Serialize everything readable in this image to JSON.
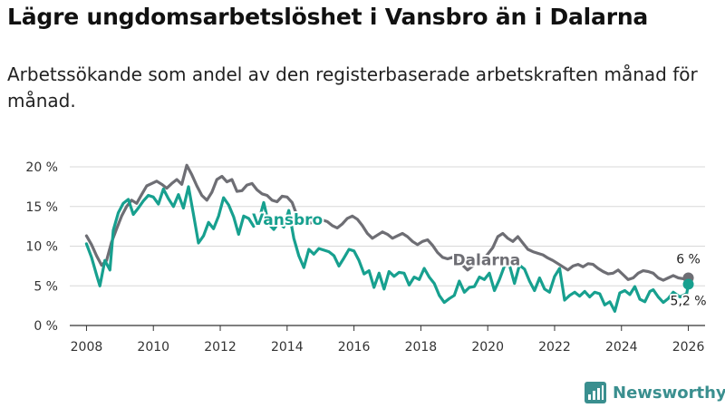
{
  "title": "Lägre ungdomsarbetslöshet i Vansbro än i Dalarna",
  "subtitle": "Arbetssökande som andel av den registerbaserade arbetskraften månad för månad.",
  "brand": {
    "name": "Newsworthy",
    "color": "#3a8f8f"
  },
  "colors": {
    "vansbro": "#17a08f",
    "dalarna": "#6e6e74",
    "grid": "#d8d8d8",
    "axis": "#333333"
  },
  "chart_data": {
    "type": "line",
    "title": "Lägre ungdomsarbetslöshet i Vansbro än i Dalarna",
    "xlabel": "",
    "ylabel": "",
    "xlim": [
      2007.5,
      2026.5
    ],
    "ylim": [
      0,
      20
    ],
    "x_ticks": [
      2008,
      2010,
      2012,
      2014,
      2016,
      2018,
      2020,
      2022,
      2024,
      2026
    ],
    "x_tick_labels": [
      "2008",
      "2010",
      "2012",
      "2014",
      "2016",
      "2018",
      "2020",
      "2022",
      "2024",
      "2026"
    ],
    "y_ticks": [
      0,
      5,
      10,
      15,
      20
    ],
    "y_tick_labels": [
      "0 %",
      "5 %",
      "10 %",
      "15 %",
      "20 %"
    ],
    "grid": true,
    "series": [
      {
        "name": "Dalarna",
        "label": "Dalarna",
        "color": "#6e6e74",
        "end_label": "6 %",
        "points": [
          [
            2008.0,
            11.3
          ],
          [
            2008.15,
            10.2
          ],
          [
            2008.3,
            8.8
          ],
          [
            2008.45,
            7.6
          ],
          [
            2008.6,
            8.2
          ],
          [
            2008.75,
            10.5
          ],
          [
            2008.9,
            12.2
          ],
          [
            2009.05,
            13.8
          ],
          [
            2009.2,
            15.0
          ],
          [
            2009.35,
            15.8
          ],
          [
            2009.5,
            15.4
          ],
          [
            2009.65,
            16.5
          ],
          [
            2009.8,
            17.6
          ],
          [
            2009.95,
            17.9
          ],
          [
            2010.1,
            18.2
          ],
          [
            2010.25,
            17.8
          ],
          [
            2010.4,
            17.3
          ],
          [
            2010.55,
            17.9
          ],
          [
            2010.7,
            18.4
          ],
          [
            2010.85,
            17.8
          ],
          [
            2011.0,
            20.2
          ],
          [
            2011.15,
            19.0
          ],
          [
            2011.3,
            17.6
          ],
          [
            2011.45,
            16.4
          ],
          [
            2011.6,
            15.8
          ],
          [
            2011.75,
            16.8
          ],
          [
            2011.9,
            18.4
          ],
          [
            2012.05,
            18.8
          ],
          [
            2012.2,
            18.1
          ],
          [
            2012.35,
            18.4
          ],
          [
            2012.5,
            16.9
          ],
          [
            2012.65,
            17.0
          ],
          [
            2012.8,
            17.7
          ],
          [
            2012.95,
            17.9
          ],
          [
            2013.1,
            17.1
          ],
          [
            2013.25,
            16.6
          ],
          [
            2013.4,
            16.4
          ],
          [
            2013.55,
            15.8
          ],
          [
            2013.7,
            15.6
          ],
          [
            2013.85,
            16.3
          ],
          [
            2014.0,
            16.2
          ],
          [
            2014.15,
            15.5
          ],
          [
            2014.3,
            13.8
          ],
          [
            2014.45,
            13.0
          ],
          [
            2014.6,
            12.8
          ],
          [
            2014.75,
            13.0
          ],
          [
            2014.9,
            12.9
          ],
          [
            2015.05,
            13.3
          ],
          [
            2015.2,
            13.1
          ],
          [
            2015.35,
            12.6
          ],
          [
            2015.5,
            12.3
          ],
          [
            2015.65,
            12.8
          ],
          [
            2015.8,
            13.5
          ],
          [
            2015.95,
            13.8
          ],
          [
            2016.1,
            13.4
          ],
          [
            2016.25,
            12.6
          ],
          [
            2016.4,
            11.6
          ],
          [
            2016.55,
            11.0
          ],
          [
            2016.7,
            11.4
          ],
          [
            2016.85,
            11.8
          ],
          [
            2017.0,
            11.5
          ],
          [
            2017.15,
            11.0
          ],
          [
            2017.3,
            11.3
          ],
          [
            2017.45,
            11.6
          ],
          [
            2017.6,
            11.2
          ],
          [
            2017.75,
            10.6
          ],
          [
            2017.9,
            10.2
          ],
          [
            2018.05,
            10.6
          ],
          [
            2018.2,
            10.8
          ],
          [
            2018.35,
            10.1
          ],
          [
            2018.5,
            9.2
          ],
          [
            2018.65,
            8.6
          ],
          [
            2018.8,
            8.4
          ],
          [
            2018.95,
            8.6
          ],
          [
            2019.1,
            8.2
          ],
          [
            2019.25,
            7.6
          ],
          [
            2019.4,
            7.0
          ],
          [
            2019.55,
            7.5
          ],
          [
            2019.7,
            7.8
          ],
          [
            2019.85,
            8.3
          ],
          [
            2020.0,
            9.0
          ],
          [
            2020.15,
            9.8
          ],
          [
            2020.3,
            11.2
          ],
          [
            2020.45,
            11.6
          ],
          [
            2020.6,
            11.0
          ],
          [
            2020.75,
            10.6
          ],
          [
            2020.9,
            11.2
          ],
          [
            2021.05,
            10.4
          ],
          [
            2021.2,
            9.6
          ],
          [
            2021.35,
            9.3
          ],
          [
            2021.5,
            9.1
          ],
          [
            2021.65,
            8.9
          ],
          [
            2021.8,
            8.5
          ],
          [
            2021.95,
            8.2
          ],
          [
            2022.1,
            7.8
          ],
          [
            2022.25,
            7.4
          ],
          [
            2022.4,
            7.0
          ],
          [
            2022.55,
            7.5
          ],
          [
            2022.7,
            7.7
          ],
          [
            2022.85,
            7.4
          ],
          [
            2023.0,
            7.8
          ],
          [
            2023.15,
            7.7
          ],
          [
            2023.3,
            7.2
          ],
          [
            2023.45,
            6.8
          ],
          [
            2023.6,
            6.5
          ],
          [
            2023.75,
            6.6
          ],
          [
            2023.9,
            7.0
          ],
          [
            2024.05,
            6.4
          ],
          [
            2024.2,
            5.8
          ],
          [
            2024.35,
            6.0
          ],
          [
            2024.5,
            6.6
          ],
          [
            2024.65,
            6.9
          ],
          [
            2024.8,
            6.8
          ],
          [
            2024.95,
            6.6
          ],
          [
            2025.1,
            6.0
          ],
          [
            2025.25,
            5.7
          ],
          [
            2025.4,
            6.0
          ],
          [
            2025.55,
            6.3
          ],
          [
            2025.7,
            6.0
          ],
          [
            2025.85,
            5.9
          ],
          [
            2026.0,
            6.0
          ]
        ]
      },
      {
        "name": "Vansbro",
        "label": "Vansbro",
        "color": "#17a08f",
        "end_label": "5,2 %",
        "points": [
          [
            2008.0,
            10.3
          ],
          [
            2008.15,
            8.6
          ],
          [
            2008.3,
            6.4
          ],
          [
            2008.4,
            5.0
          ],
          [
            2008.55,
            8.2
          ],
          [
            2008.7,
            7.0
          ],
          [
            2008.8,
            12.0
          ],
          [
            2008.95,
            14.2
          ],
          [
            2009.1,
            15.4
          ],
          [
            2009.25,
            15.9
          ],
          [
            2009.4,
            14.0
          ],
          [
            2009.55,
            14.8
          ],
          [
            2009.7,
            15.7
          ],
          [
            2009.85,
            16.4
          ],
          [
            2010.0,
            16.2
          ],
          [
            2010.15,
            15.3
          ],
          [
            2010.3,
            17.2
          ],
          [
            2010.45,
            16.0
          ],
          [
            2010.6,
            15.0
          ],
          [
            2010.75,
            16.5
          ],
          [
            2010.9,
            14.8
          ],
          [
            2011.05,
            17.5
          ],
          [
            2011.2,
            14.0
          ],
          [
            2011.35,
            10.4
          ],
          [
            2011.5,
            11.3
          ],
          [
            2011.65,
            13.0
          ],
          [
            2011.8,
            12.2
          ],
          [
            2011.95,
            13.8
          ],
          [
            2012.1,
            16.1
          ],
          [
            2012.25,
            15.2
          ],
          [
            2012.4,
            13.7
          ],
          [
            2012.55,
            11.5
          ],
          [
            2012.7,
            13.8
          ],
          [
            2012.85,
            13.5
          ],
          [
            2013.0,
            12.5
          ],
          [
            2013.15,
            13.2
          ],
          [
            2013.3,
            15.5
          ],
          [
            2013.45,
            12.8
          ],
          [
            2013.6,
            12.1
          ],
          [
            2013.75,
            13.0
          ],
          [
            2013.9,
            12.4
          ],
          [
            2014.05,
            14.5
          ],
          [
            2014.2,
            11.0
          ],
          [
            2014.35,
            8.8
          ],
          [
            2014.5,
            7.3
          ],
          [
            2014.65,
            9.6
          ],
          [
            2014.8,
            9.0
          ],
          [
            2014.95,
            9.7
          ],
          [
            2015.1,
            9.5
          ],
          [
            2015.25,
            9.3
          ],
          [
            2015.4,
            8.8
          ],
          [
            2015.55,
            7.5
          ],
          [
            2015.7,
            8.5
          ],
          [
            2015.85,
            9.6
          ],
          [
            2016.0,
            9.4
          ],
          [
            2016.15,
            8.2
          ],
          [
            2016.3,
            6.5
          ],
          [
            2016.45,
            6.9
          ],
          [
            2016.6,
            4.8
          ],
          [
            2016.75,
            6.6
          ],
          [
            2016.9,
            4.6
          ],
          [
            2017.05,
            6.8
          ],
          [
            2017.2,
            6.2
          ],
          [
            2017.35,
            6.7
          ],
          [
            2017.5,
            6.6
          ],
          [
            2017.65,
            5.1
          ],
          [
            2017.8,
            6.1
          ],
          [
            2017.95,
            5.8
          ],
          [
            2018.1,
            7.2
          ],
          [
            2018.25,
            6.1
          ],
          [
            2018.4,
            5.3
          ],
          [
            2018.55,
            3.8
          ],
          [
            2018.7,
            2.9
          ],
          [
            2018.85,
            3.4
          ],
          [
            2019.0,
            3.8
          ],
          [
            2019.15,
            5.6
          ],
          [
            2019.3,
            4.2
          ],
          [
            2019.45,
            4.8
          ],
          [
            2019.6,
            4.9
          ],
          [
            2019.75,
            6.1
          ],
          [
            2019.9,
            5.8
          ],
          [
            2020.05,
            6.6
          ],
          [
            2020.2,
            4.4
          ],
          [
            2020.35,
            5.8
          ],
          [
            2020.5,
            7.5
          ],
          [
            2020.65,
            7.6
          ],
          [
            2020.8,
            5.3
          ],
          [
            2020.95,
            7.6
          ],
          [
            2021.1,
            7.1
          ],
          [
            2021.25,
            5.6
          ],
          [
            2021.4,
            4.4
          ],
          [
            2021.55,
            6.0
          ],
          [
            2021.7,
            4.6
          ],
          [
            2021.85,
            4.2
          ],
          [
            2022.0,
            6.2
          ],
          [
            2022.15,
            7.2
          ],
          [
            2022.3,
            3.2
          ],
          [
            2022.45,
            3.8
          ],
          [
            2022.6,
            4.2
          ],
          [
            2022.75,
            3.7
          ],
          [
            2022.9,
            4.3
          ],
          [
            2023.05,
            3.6
          ],
          [
            2023.2,
            4.2
          ],
          [
            2023.35,
            4.0
          ],
          [
            2023.5,
            2.6
          ],
          [
            2023.65,
            3.0
          ],
          [
            2023.8,
            1.8
          ],
          [
            2023.95,
            4.1
          ],
          [
            2024.1,
            4.4
          ],
          [
            2024.25,
            3.9
          ],
          [
            2024.4,
            4.9
          ],
          [
            2024.55,
            3.3
          ],
          [
            2024.7,
            3.0
          ],
          [
            2024.85,
            4.3
          ],
          [
            2024.95,
            4.5
          ],
          [
            2025.1,
            3.6
          ],
          [
            2025.25,
            2.9
          ],
          [
            2025.4,
            3.4
          ],
          [
            2025.55,
            4.2
          ],
          [
            2025.75,
            3.6
          ],
          [
            2025.95,
            4.0
          ],
          [
            2026.0,
            5.2
          ]
        ]
      }
    ]
  }
}
